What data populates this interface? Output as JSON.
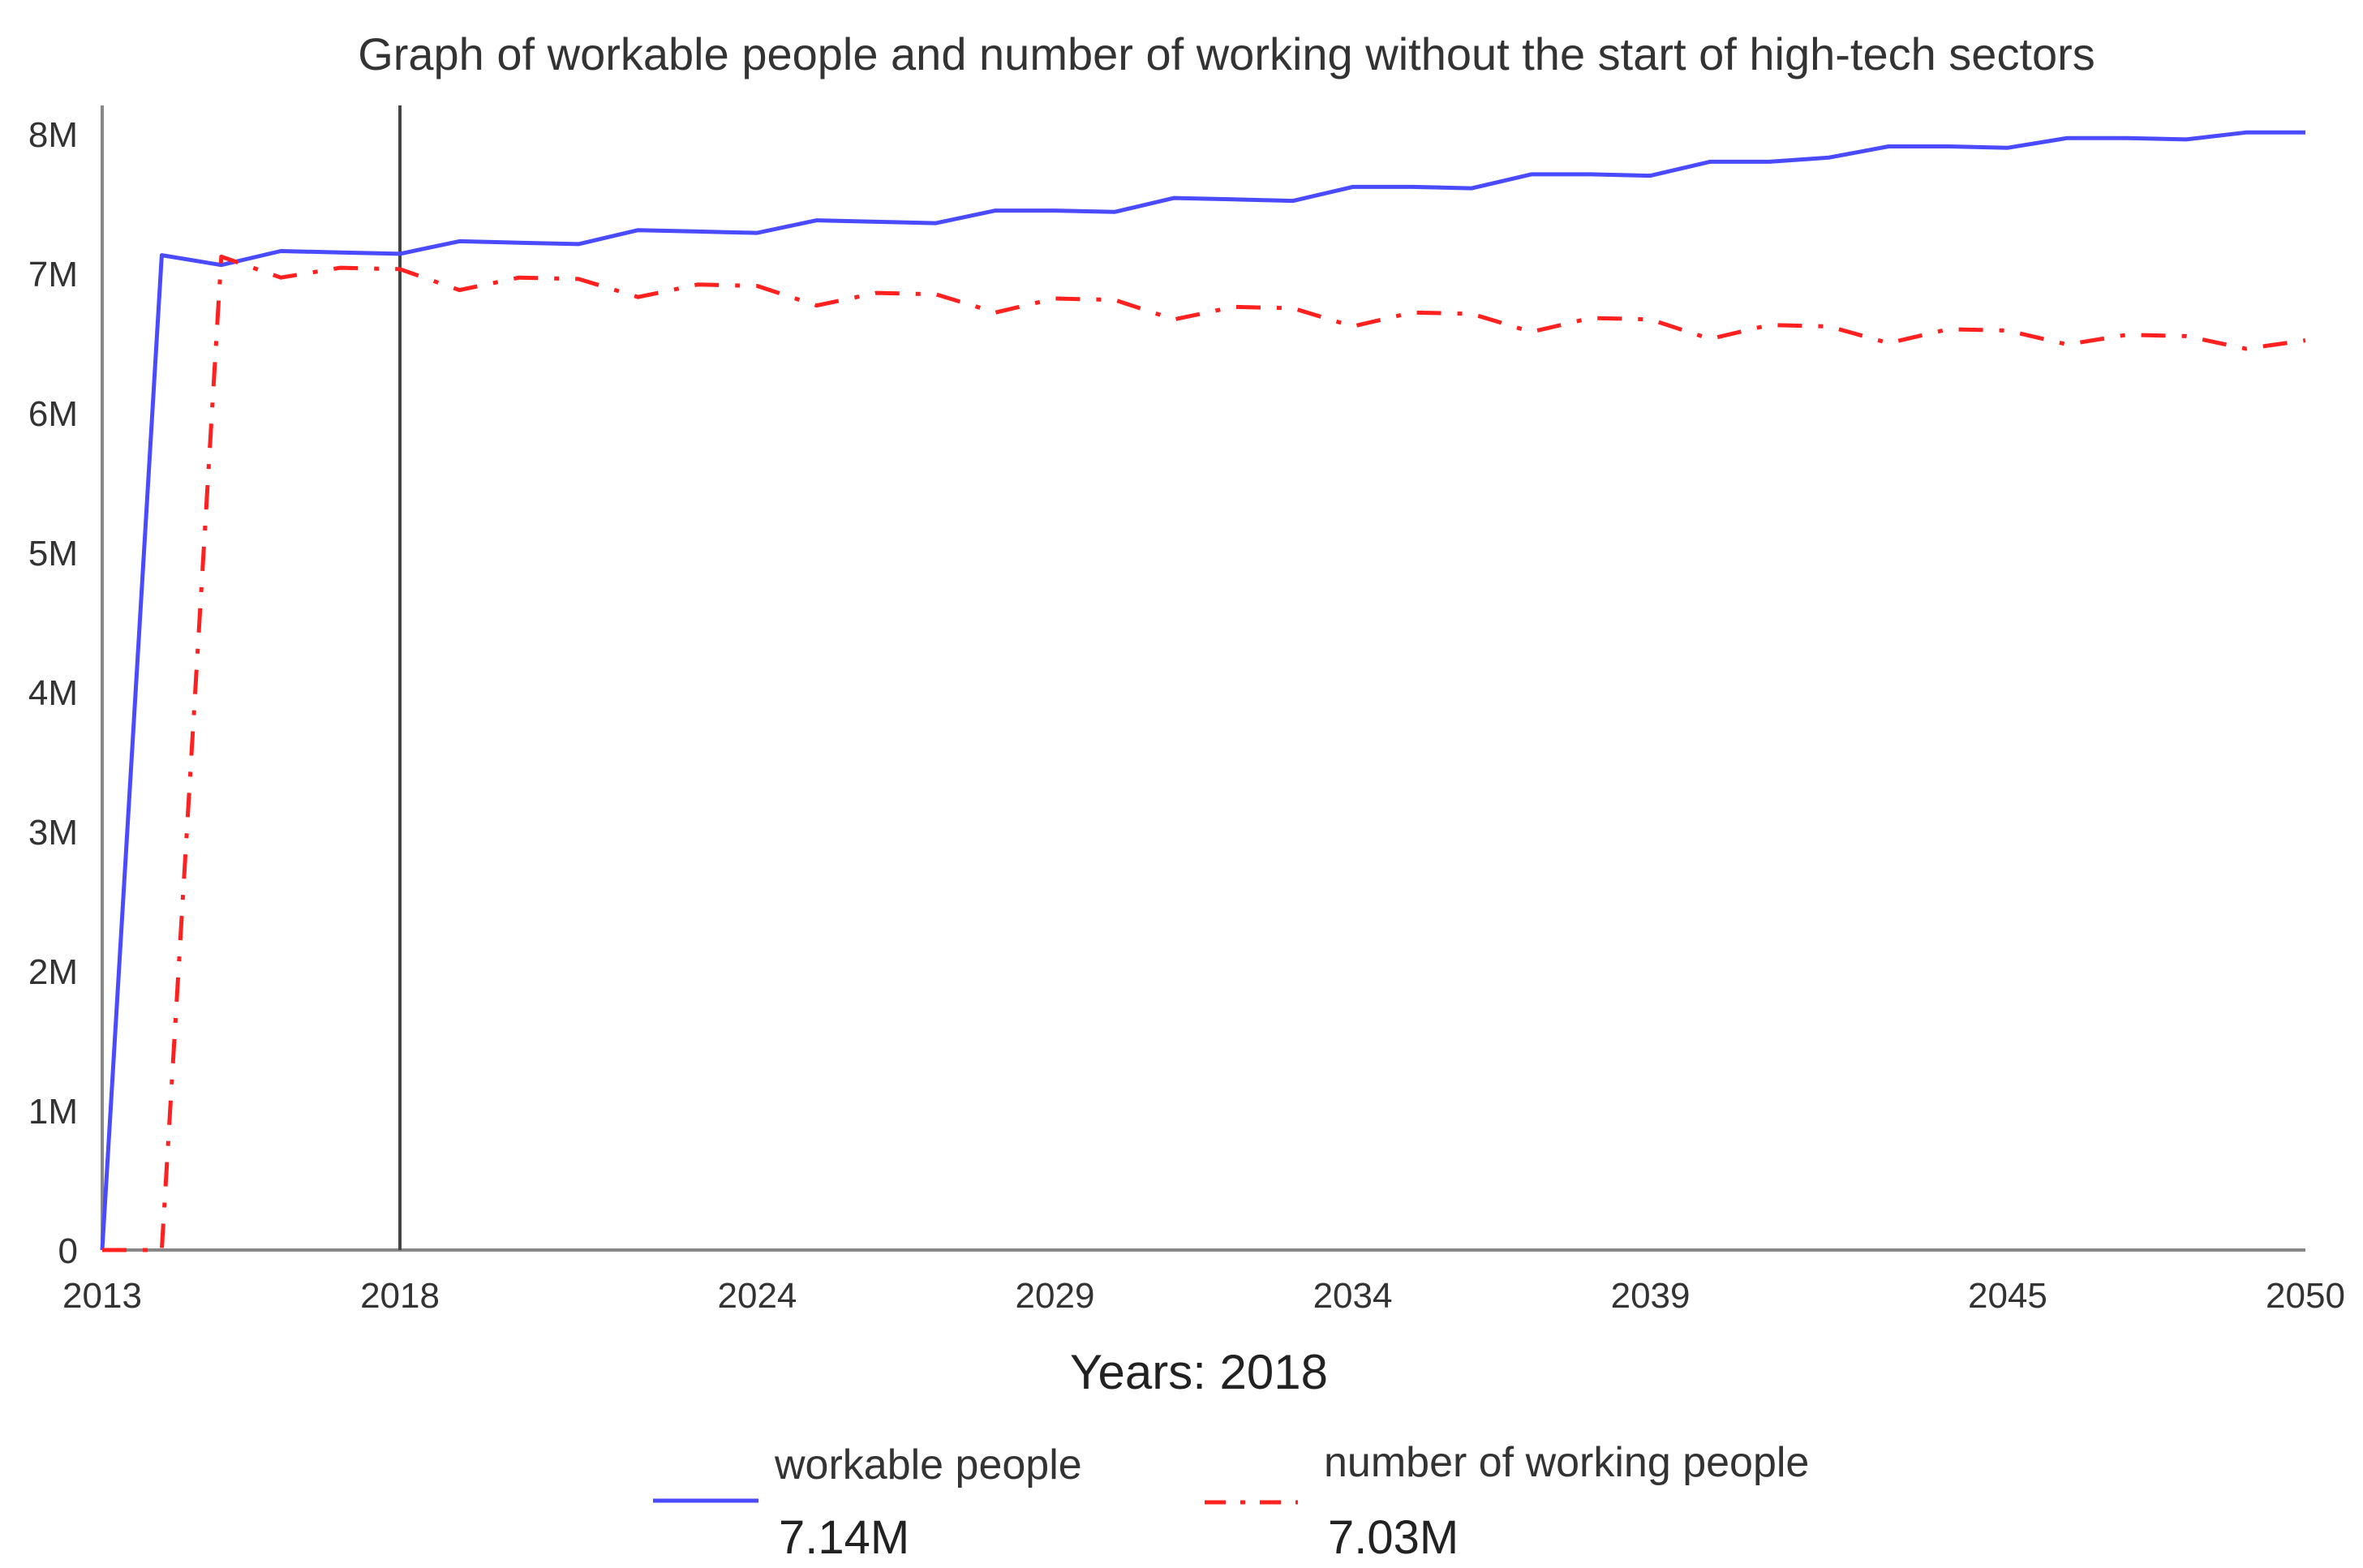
{
  "chart_data": {
    "type": "line",
    "title": "Graph of workable people and number of working without the start of high-tech sectors",
    "xlabel": "Years: ",
    "current_year": 2018,
    "xlim": [
      2013,
      2050
    ],
    "ylim": [
      0,
      8000000
    ],
    "x_ticks": [
      2013,
      2018,
      2024,
      2029,
      2034,
      2039,
      2045,
      2050
    ],
    "y_ticks": [
      {
        "value": 0,
        "label": "0"
      },
      {
        "value": 1000000,
        "label": "1M"
      },
      {
        "value": 2000000,
        "label": "2M"
      },
      {
        "value": 3000000,
        "label": "3M"
      },
      {
        "value": 4000000,
        "label": "4M"
      },
      {
        "value": 5000000,
        "label": "5M"
      },
      {
        "value": 6000000,
        "label": "6M"
      },
      {
        "value": 7000000,
        "label": "7M"
      },
      {
        "value": 8000000,
        "label": "8M"
      }
    ],
    "grid": false,
    "legend_position": "bottom",
    "series": [
      {
        "name": "workable people",
        "current_value": "7.14M",
        "color": "#4a4aff",
        "style": "solid",
        "x": [
          2013,
          2014,
          2015,
          2016,
          2017,
          2018,
          2019,
          2020,
          2021,
          2022,
          2023,
          2024,
          2025,
          2026,
          2027,
          2028,
          2029,
          2030,
          2031,
          2032,
          2033,
          2034,
          2035,
          2036,
          2037,
          2038,
          2039,
          2040,
          2041,
          2042,
          2043,
          2044,
          2045,
          2046,
          2047,
          2048,
          2049,
          2050
        ],
        "y": [
          0,
          7130000,
          7060000,
          7160000,
          7150000,
          7140000,
          7230000,
          7220000,
          7210000,
          7310000,
          7300000,
          7290000,
          7380000,
          7370000,
          7360000,
          7450000,
          7450000,
          7440000,
          7540000,
          7530000,
          7520000,
          7620000,
          7620000,
          7610000,
          7710000,
          7710000,
          7700000,
          7800000,
          7800000,
          7830000,
          7910000,
          7910000,
          7900000,
          7970000,
          7970000,
          7960000,
          8010000,
          8010000
        ]
      },
      {
        "name": "number of working people",
        "current_value": "7.03M",
        "color": "#ff2020",
        "style": "dashdot",
        "x": [
          2013,
          2014,
          2015,
          2016,
          2017,
          2018,
          2019,
          2020,
          2021,
          2022,
          2023,
          2024,
          2025,
          2026,
          2027,
          2028,
          2029,
          2030,
          2031,
          2032,
          2033,
          2034,
          2035,
          2036,
          2037,
          2038,
          2039,
          2040,
          2041,
          2042,
          2043,
          2044,
          2045,
          2046,
          2047,
          2048,
          2049,
          2050
        ],
        "y": [
          0,
          0,
          7120000,
          6970000,
          7040000,
          7030000,
          6880000,
          6970000,
          6960000,
          6830000,
          6920000,
          6910000,
          6770000,
          6860000,
          6850000,
          6720000,
          6820000,
          6810000,
          6670000,
          6760000,
          6750000,
          6620000,
          6720000,
          6710000,
          6580000,
          6680000,
          6670000,
          6530000,
          6630000,
          6620000,
          6500000,
          6600000,
          6590000,
          6490000,
          6560000,
          6550000,
          6460000,
          6520000
        ]
      }
    ]
  }
}
